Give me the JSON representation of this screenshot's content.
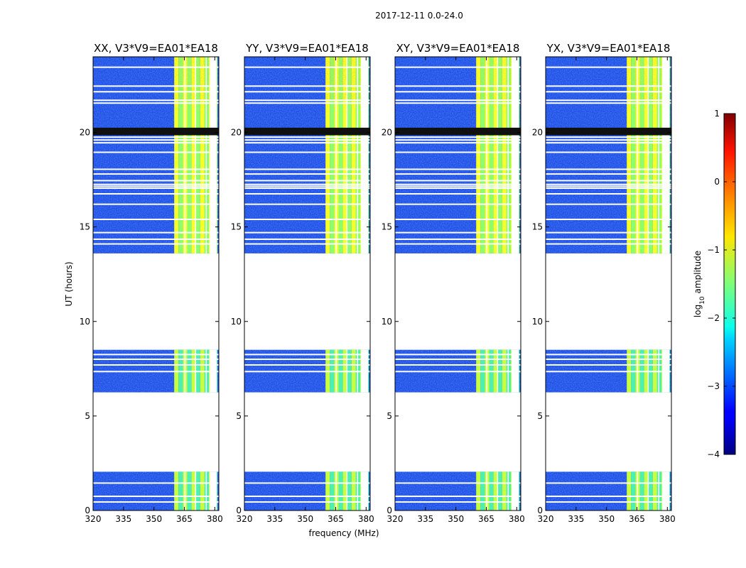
{
  "chart_data": {
    "type": "heatmap",
    "suptitle": "2017-12-11 0.0-24.0",
    "xlabel": "frequency (MHz)",
    "ylabel": "UT (hours)",
    "xlim": [
      320,
      382
    ],
    "ylim": [
      0,
      24
    ],
    "x_ticks": [
      320,
      335,
      350,
      365,
      380
    ],
    "y_ticks": [
      0,
      5,
      10,
      15,
      20
    ],
    "panels": [
      {
        "title": "XX, V3*V9=EA01*EA18",
        "pol": "XX"
      },
      {
        "title": "YY, V3*V9=EA01*EA18",
        "pol": "YY"
      },
      {
        "title": "XY, V3*V9=EA01*EA18",
        "pol": "XY"
      },
      {
        "title": "YX, V3*V9=EA01*EA18",
        "pol": "YX"
      }
    ],
    "data_segments_hours": [
      [
        0.0,
        2.05
      ],
      [
        6.25,
        8.5
      ],
      [
        13.6,
        24.0
      ]
    ],
    "gap_lines_hours": [
      0.45,
      0.75,
      1.45,
      7.35,
      7.7,
      8.0,
      8.25,
      14.1,
      14.35,
      14.7,
      15.4,
      16.2,
      16.75,
      17.05,
      17.15,
      17.25,
      17.45,
      17.8,
      18.05,
      18.95,
      19.45,
      19.6,
      19.75,
      21.55,
      21.7,
      22.15,
      22.45,
      23.45
    ],
    "flagged_band_hours": [
      19.85,
      20.25
    ],
    "rfi_bands_mhz": [
      [
        360,
        381
      ]
    ],
    "colorbar": {
      "label": "log₁₀ amplitude",
      "label_base": "log",
      "label_sub": "10",
      "label_rest": " amplitude",
      "min": -4,
      "max": 1,
      "ticks": [
        "−4",
        "−3",
        "−2",
        "−1",
        "0",
        "1"
      ],
      "colormap": "jet"
    }
  }
}
